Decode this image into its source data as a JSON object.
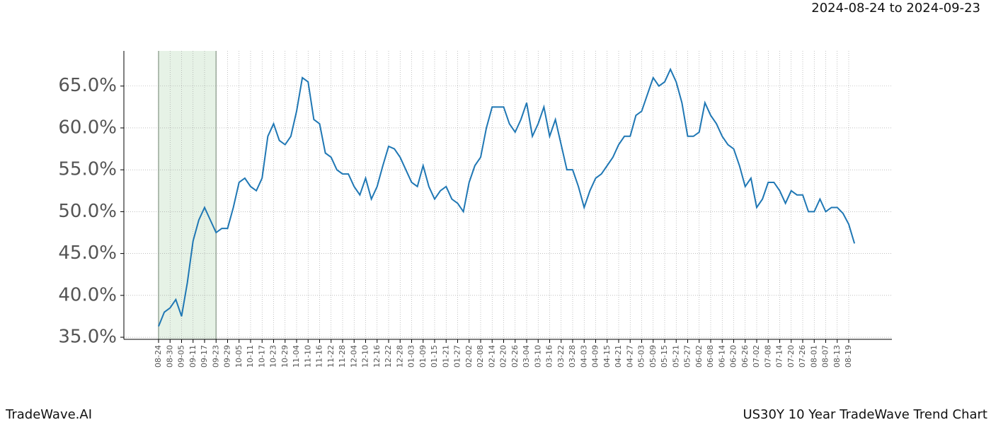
{
  "chart_data": {
    "type": "line",
    "subtitle": "2024-08-24 to 2024-09-23",
    "categories": [
      "08-24",
      null,
      "08-30",
      null,
      "09-05",
      null,
      "09-11",
      null,
      "09-17",
      null,
      "09-23",
      null,
      "09-29",
      null,
      "10-05",
      null,
      "10-11",
      null,
      "10-17",
      null,
      "10-23",
      null,
      "10-29",
      null,
      "11-04",
      null,
      "11-10",
      null,
      "11-16",
      null,
      "11-22",
      null,
      "11-28",
      null,
      "12-04",
      null,
      "12-10",
      null,
      "12-16",
      null,
      "12-22",
      null,
      "12-28",
      null,
      "01-03",
      null,
      "01-09",
      null,
      "01-15",
      null,
      "01-21",
      null,
      "01-27",
      null,
      "02-02",
      null,
      "02-08",
      null,
      "02-14",
      null,
      "02-20",
      null,
      "02-26",
      null,
      "03-04",
      null,
      "03-10",
      null,
      "03-16",
      null,
      "03-22",
      null,
      "03-28",
      null,
      "04-03",
      null,
      "04-09",
      null,
      "04-15",
      null,
      "04-21",
      null,
      "04-27",
      null,
      "05-03",
      null,
      "05-09",
      null,
      "05-15",
      null,
      "05-21",
      null,
      "05-27",
      null,
      "06-02",
      null,
      "06-08",
      null,
      "06-14",
      null,
      "06-20",
      null,
      "06-26",
      null,
      "07-02",
      null,
      "07-08",
      null,
      "07-14",
      null,
      "07-20",
      null,
      "07-26",
      null,
      "08-01",
      null,
      "08-07",
      null,
      "08-13",
      null,
      "08-19",
      null
    ],
    "series": [
      {
        "name": "US30Y",
        "color": "#1f77b4",
        "values": [
          36.3,
          38,
          38.5,
          39.5,
          37.5,
          41.5,
          46.5,
          49,
          50.5,
          49,
          47.5,
          48,
          48,
          50.5,
          53.5,
          54,
          53,
          52.5,
          54,
          59,
          60.5,
          58.5,
          58,
          59,
          62,
          66,
          65.5,
          61,
          60.5,
          57,
          56.5,
          55,
          54.5,
          54.5,
          53,
          52,
          54,
          51.5,
          53,
          55.5,
          57.8,
          57.5,
          56.5,
          55,
          53.5,
          53,
          55.5,
          53,
          51.5,
          52.5,
          53,
          51.5,
          51,
          50,
          53.5,
          55.5,
          56.5,
          60,
          62.5,
          62.5,
          62.5,
          60.5,
          59.5,
          61,
          63,
          59,
          60.5,
          62.5,
          59,
          61,
          58,
          55,
          55,
          53,
          50.5,
          52.5,
          54,
          54.5,
          55.5,
          56.5,
          58,
          59,
          59,
          61.5,
          62,
          64,
          66,
          65,
          65.5,
          67,
          65.5,
          63,
          59,
          59,
          59.5,
          63,
          61.5,
          60.5,
          59,
          58,
          57.5,
          55.5,
          53,
          54,
          50.5,
          51.5,
          53.5,
          53.5,
          52.5,
          51,
          52.5,
          52,
          52,
          50,
          50,
          51.5,
          50,
          50.5,
          50.5,
          49.8,
          48.5,
          46.2
        ]
      }
    ],
    "ylim": [
      34.75,
      69.2
    ],
    "yticks": [
      {
        "value": 35,
        "label": "35.0%"
      },
      {
        "value": 40,
        "label": "40.0%"
      },
      {
        "value": 45,
        "label": "45.0%"
      },
      {
        "value": 50,
        "label": "50.0%"
      },
      {
        "value": 55,
        "label": "55.0%"
      },
      {
        "value": 60,
        "label": "60.0%"
      },
      {
        "value": 65,
        "label": "65.0%"
      }
    ],
    "grid": true,
    "highlight": [
      "08-24",
      "09-23"
    ],
    "highlight_color": "#e6f2e6"
  },
  "footer": {
    "left": "TradeWave.AI",
    "right": "US30Y 10 Year TradeWave Trend Chart"
  }
}
